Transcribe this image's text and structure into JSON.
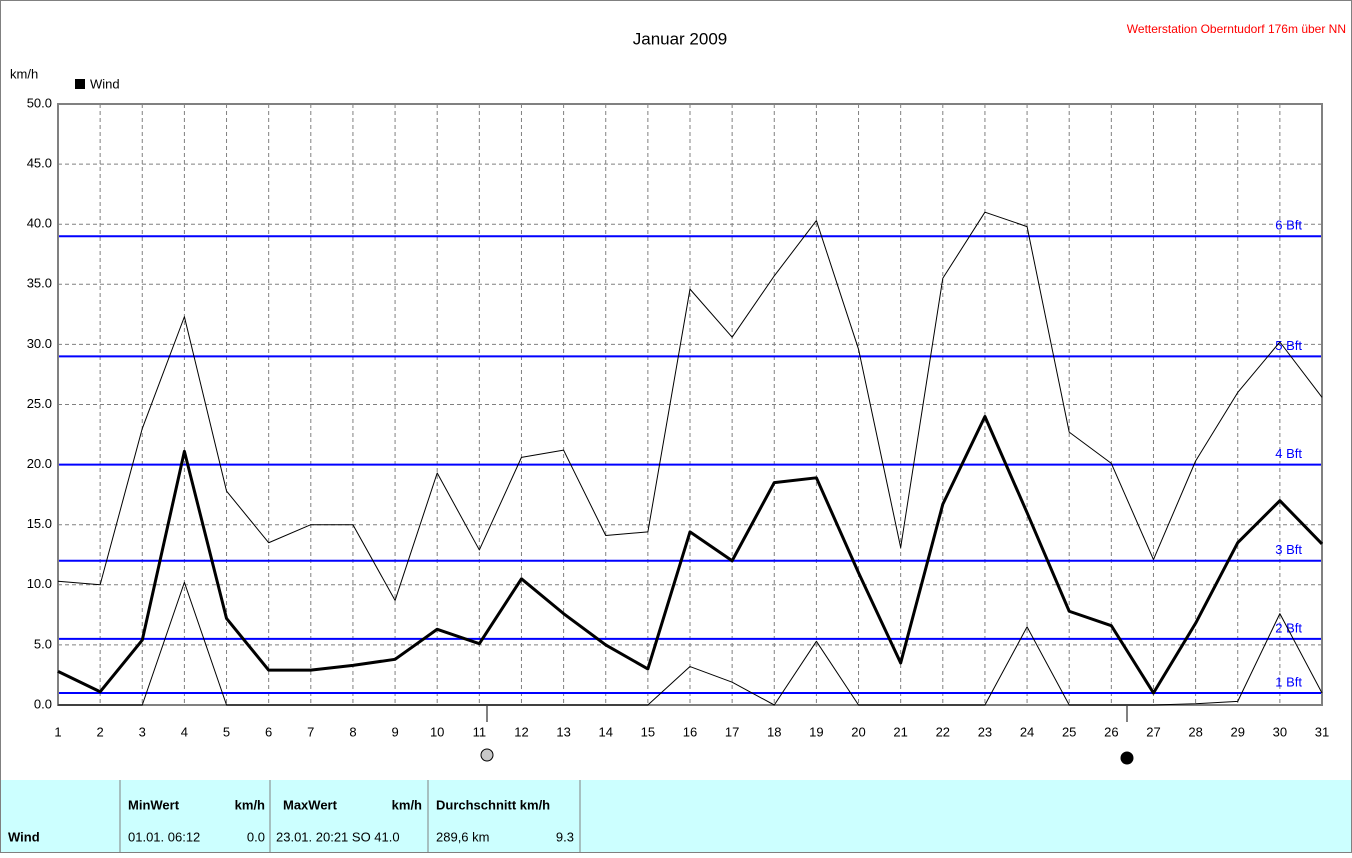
{
  "chart_data": {
    "type": "line",
    "title": "Januar 2009",
    "station": "Wetterstation Oberntudorf 176m über NN",
    "y_label": "km/h",
    "legend": "Wind",
    "legend_color": "#000000",
    "x": [
      1,
      2,
      3,
      4,
      5,
      6,
      7,
      8,
      9,
      10,
      11,
      12,
      13,
      14,
      15,
      16,
      17,
      18,
      19,
      20,
      21,
      22,
      23,
      24,
      25,
      26,
      27,
      28,
      29,
      30,
      31
    ],
    "xlim": [
      1,
      31
    ],
    "xticks": [
      1,
      2,
      3,
      4,
      5,
      6,
      7,
      8,
      9,
      10,
      11,
      12,
      13,
      14,
      15,
      16,
      17,
      18,
      19,
      20,
      21,
      22,
      23,
      24,
      25,
      26,
      27,
      28,
      29,
      30,
      31
    ],
    "ylim": [
      0,
      50
    ],
    "yticks": [
      {
        "value": 0,
        "label": "0.0"
      },
      {
        "value": 5,
        "label": "5.0"
      },
      {
        "value": 10,
        "label": "10.0"
      },
      {
        "value": 15,
        "label": "15.0"
      },
      {
        "value": 20,
        "label": "20.0"
      },
      {
        "value": 25,
        "label": "25.0"
      },
      {
        "value": 30,
        "label": "30.0"
      },
      {
        "value": 35,
        "label": "35.0"
      },
      {
        "value": 40,
        "label": "40.0"
      },
      {
        "value": 45,
        "label": "45.0"
      },
      {
        "value": 50,
        "label": "50.0"
      }
    ],
    "grid": true,
    "series": [
      {
        "color": "#000000",
        "line_width": 1,
        "values": [
          10.3,
          10.0,
          23.0,
          32.3,
          17.8,
          13.5,
          15.0,
          15.0,
          8.7,
          19.3,
          12.9,
          20.6,
          21.2,
          14.1,
          14.4,
          34.6,
          30.6,
          35.7,
          40.3,
          29.6,
          13.1,
          35.5,
          41.0,
          39.8,
          22.7,
          20.1,
          12.1,
          20.3,
          26.0,
          30.2,
          25.6
        ]
      },
      {
        "color": "#000000",
        "line_width": 3,
        "values": [
          2.8,
          1.1,
          5.4,
          21.1,
          7.2,
          2.9,
          2.9,
          3.3,
          3.8,
          6.3,
          5.1,
          10.5,
          7.6,
          5.0,
          3.0,
          14.4,
          12.0,
          18.5,
          18.9,
          11.0,
          3.5,
          16.7,
          24.0,
          16.0,
          7.8,
          6.6,
          1.0,
          6.8,
          13.5,
          17.0,
          13.4
        ]
      },
      {
        "color": "#000000",
        "line_width": 1,
        "values": [
          0,
          0,
          0,
          10.2,
          0,
          0,
          0,
          0,
          0,
          0,
          0,
          0,
          0,
          0,
          0,
          3.2,
          1.9,
          0,
          5.3,
          0,
          0,
          0,
          0,
          6.5,
          0,
          0,
          0,
          0.1,
          0.3,
          7.6,
          1.0
        ]
      }
    ],
    "reference_color": "#0000ff",
    "reference_lines": [
      {
        "value": 1,
        "label": "1 Bft"
      },
      {
        "value": 5.5,
        "label": "2 Bft"
      },
      {
        "value": 12,
        "label": "3 Bft"
      },
      {
        "value": 20,
        "label": "4 Bft"
      },
      {
        "value": 29,
        "label": "5 Bft"
      },
      {
        "value": 39,
        "label": "6 Bft"
      }
    ]
  },
  "table": {
    "header": [
      "MinWert",
      "km/h",
      "MaxWert",
      "km/h",
      "Durchschnitt km/h"
    ],
    "rows": [
      [
        "Wind",
        "01.01.  06:12",
        "0.0",
        "23.01.  20:21 SO 41.0",
        "289,6 km",
        "9.3"
      ]
    ]
  }
}
